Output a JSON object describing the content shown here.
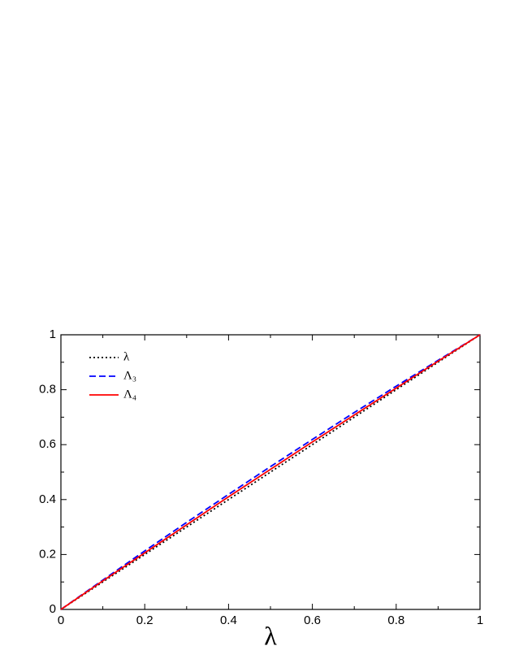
{
  "chart_data": {
    "type": "line",
    "xlabel": "λ",
    "x": [
      0,
      0.1,
      0.2,
      0.3,
      0.4,
      0.5,
      0.6,
      0.7,
      0.8,
      0.9,
      1
    ],
    "series": [
      {
        "name": "λ",
        "color": "#000000",
        "dash": "2,3",
        "values": [
          0,
          0.1,
          0.2,
          0.3,
          0.4,
          0.5,
          0.6,
          0.7,
          0.8,
          0.9,
          1
        ]
      },
      {
        "name": "Λ₃",
        "color": "#0000ff",
        "dash": "8,4",
        "values": [
          0,
          0.107,
          0.213,
          0.317,
          0.419,
          0.52,
          0.619,
          0.717,
          0.813,
          0.907,
          1
        ]
      },
      {
        "name": "Λ₄",
        "color": "#ff0000",
        "dash": "none",
        "values": [
          0,
          0.104,
          0.206,
          0.308,
          0.41,
          0.51,
          0.61,
          0.708,
          0.806,
          0.904,
          1
        ]
      }
    ],
    "xlim": [
      0,
      1
    ],
    "ylim": [
      0,
      1
    ],
    "xticks": [
      0,
      0.2,
      0.4,
      0.6,
      0.8,
      1
    ],
    "yticks": [
      0,
      0.2,
      0.4,
      0.6,
      0.8,
      1
    ],
    "xminorticks": [
      0.1,
      0.3,
      0.5,
      0.7,
      0.9
    ],
    "yminorticks": [
      0.1,
      0.3,
      0.5,
      0.7,
      0.9
    ],
    "legend": "upper left"
  }
}
